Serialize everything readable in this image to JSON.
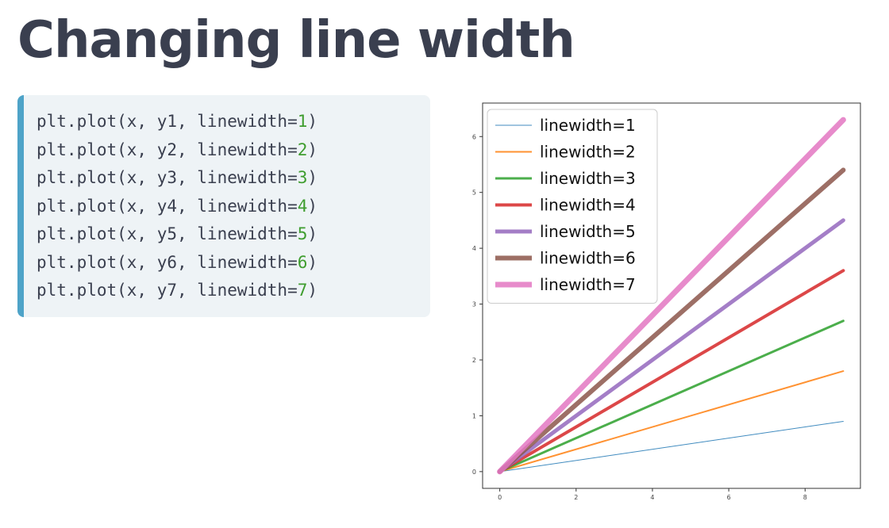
{
  "page": {
    "title": "Changing line width"
  },
  "code": {
    "lines": [
      {
        "prefix": "plt.plot(x, y1, linewidth=",
        "num": "1",
        "suffix": ")"
      },
      {
        "prefix": "plt.plot(x, y2, linewidth=",
        "num": "2",
        "suffix": ")"
      },
      {
        "prefix": "plt.plot(x, y3, linewidth=",
        "num": "3",
        "suffix": ")"
      },
      {
        "prefix": "plt.plot(x, y4, linewidth=",
        "num": "4",
        "suffix": ")"
      },
      {
        "prefix": "plt.plot(x, y5, linewidth=",
        "num": "5",
        "suffix": ")"
      },
      {
        "prefix": "plt.plot(x, y6, linewidth=",
        "num": "6",
        "suffix": ")"
      },
      {
        "prefix": "plt.plot(x, y7, linewidth=",
        "num": "7",
        "suffix": ")"
      }
    ]
  },
  "chart_data": {
    "type": "line",
    "title": "",
    "xlabel": "",
    "ylabel": "",
    "xlim": [
      -0.45,
      9.45
    ],
    "ylim": [
      -0.3,
      6.6
    ],
    "xticks": [
      0,
      2,
      4,
      6,
      8
    ],
    "yticks": [
      0,
      1,
      2,
      3,
      4,
      5,
      6
    ],
    "legend_position": "top-left",
    "series": [
      {
        "name": "linewidth=1",
        "color": "#1f77b4",
        "width": 1,
        "x": [
          0,
          9
        ],
        "y": [
          0,
          0.9
        ]
      },
      {
        "name": "linewidth=2",
        "color": "#ff7f0e",
        "width": 2,
        "x": [
          0,
          9
        ],
        "y": [
          0,
          1.8
        ]
      },
      {
        "name": "linewidth=3",
        "color": "#2ca02c",
        "width": 3,
        "x": [
          0,
          9
        ],
        "y": [
          0,
          2.7
        ]
      },
      {
        "name": "linewidth=4",
        "color": "#d62728",
        "width": 4,
        "x": [
          0,
          9
        ],
        "y": [
          0,
          3.6
        ]
      },
      {
        "name": "linewidth=5",
        "color": "#9467bd",
        "width": 5,
        "x": [
          0,
          9
        ],
        "y": [
          0,
          4.5
        ]
      },
      {
        "name": "linewidth=6",
        "color": "#8c564b",
        "width": 6,
        "x": [
          0,
          9
        ],
        "y": [
          0,
          5.4
        ]
      },
      {
        "name": "linewidth=7",
        "color": "#e377c2",
        "width": 7,
        "x": [
          0,
          9
        ],
        "y": [
          0,
          6.3
        ]
      }
    ]
  }
}
